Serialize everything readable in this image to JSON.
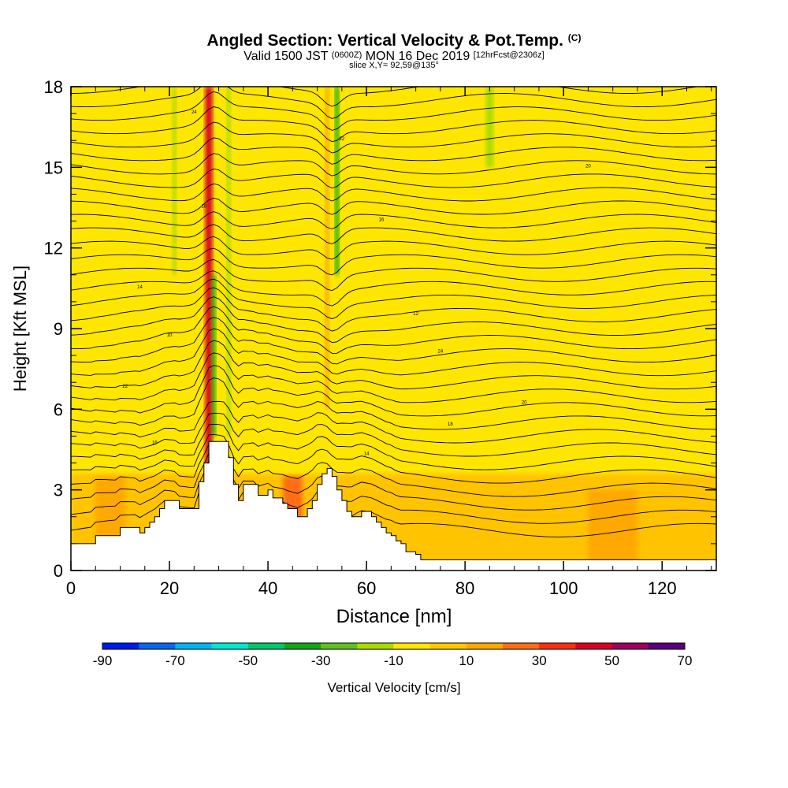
{
  "header": {
    "title": "Angled Section: Vertical Velocity & Pot.Temp.",
    "title_mark": "(C)",
    "subtitle_a": "Valid 1500 JST",
    "subtitle_b": "(0600Z)",
    "subtitle_c": "MON 16 Dec 2019",
    "subtitle_d": "[12hrFcst@2306z]",
    "slice": "slice X,Y= 92,59@135°"
  },
  "chart_data": {
    "type": "heatmap",
    "xlabel": "Distance [nm]",
    "ylabel": "Height [Kft MSL]",
    "xlim": [
      0,
      131
    ],
    "ylim": [
      0,
      18
    ],
    "xticks": [
      0,
      20,
      40,
      60,
      80,
      100,
      120
    ],
    "yticks": [
      0,
      3,
      6,
      9,
      12,
      15,
      18
    ],
    "colorbar": {
      "label": "Vertical Velocity [cm/s]",
      "tick_labels": [
        "-90",
        "-70",
        "-50",
        "-30",
        "-10",
        "10",
        "30",
        "50",
        "70"
      ],
      "range": [
        -90,
        70
      ],
      "step": 10,
      "colors": [
        "#0018f0",
        "#0a66f0",
        "#00b4f2",
        "#00e8d0",
        "#00c86a",
        "#10a818",
        "#60c020",
        "#a8dc00",
        "#ffe600",
        "#ffc800",
        "#ffa800",
        "#ff6e12",
        "#ff2e10",
        "#dc0022",
        "#a0005a",
        "#5a007c"
      ]
    },
    "background_value": -5,
    "dominant_range": [
      -10,
      10
    ],
    "features": [
      {
        "x": 28,
        "y_from": 0,
        "y_to": 18,
        "width": 1.5,
        "value": 40
      },
      {
        "x": 29,
        "y_from": 5,
        "y_to": 11,
        "width": 0.8,
        "value": -35
      },
      {
        "x": 21,
        "y_from": 11,
        "y_to": 18,
        "width": 0.8,
        "value": -15
      },
      {
        "x": 32,
        "y_from": 5,
        "y_to": 18,
        "width": 0.8,
        "value": -15
      },
      {
        "x": 54,
        "y_from": 11,
        "y_to": 18,
        "width": 0.8,
        "value": -35
      },
      {
        "x": 52,
        "y_from": 6,
        "y_to": 18,
        "width": 0.8,
        "value": 15
      },
      {
        "x": 85,
        "y_from": 15,
        "y_to": 18,
        "width": 1.5,
        "value": -15
      },
      {
        "x": 8,
        "y_from": 0,
        "y_to": 3.5,
        "width": 6,
        "value": 10
      },
      {
        "x": 45,
        "y_from": 1.5,
        "y_to": 3.5,
        "width": 4,
        "value": 20
      },
      {
        "x": 110,
        "y_from": 0,
        "y_to": 3,
        "width": 10,
        "value": 10
      }
    ],
    "terrain": [
      [
        0,
        1.0
      ],
      [
        4,
        1.0
      ],
      [
        5,
        1.3
      ],
      [
        9,
        1.3
      ],
      [
        10,
        1.6
      ],
      [
        13,
        1.6
      ],
      [
        14,
        1.4
      ],
      [
        15,
        1.6
      ],
      [
        16,
        1.8
      ],
      [
        17,
        2.0
      ],
      [
        18,
        2.3
      ],
      [
        19,
        2.6
      ],
      [
        21,
        2.6
      ],
      [
        22,
        2.3
      ],
      [
        25,
        2.3
      ],
      [
        26,
        3.3
      ],
      [
        27,
        4.0
      ],
      [
        28,
        4.8
      ],
      [
        31,
        4.8
      ],
      [
        32,
        4.2
      ],
      [
        33,
        3.2
      ],
      [
        34,
        2.6
      ],
      [
        35,
        3.2
      ],
      [
        37,
        3.2
      ],
      [
        38,
        2.8
      ],
      [
        40,
        3.0
      ],
      [
        41,
        2.7
      ],
      [
        43,
        2.5
      ],
      [
        44,
        2.3
      ],
      [
        46,
        2.0
      ],
      [
        48,
        2.3
      ],
      [
        49,
        2.6
      ],
      [
        50,
        3.2
      ],
      [
        51,
        3.6
      ],
      [
        52,
        3.8
      ],
      [
        53,
        3.5
      ],
      [
        54,
        3.0
      ],
      [
        55,
        2.6
      ],
      [
        56,
        2.2
      ],
      [
        57,
        2.0
      ],
      [
        59,
        2.2
      ],
      [
        61,
        2.0
      ],
      [
        62,
        1.8
      ],
      [
        63,
        1.6
      ],
      [
        64,
        1.4
      ],
      [
        65,
        1.3
      ],
      [
        66,
        1.1
      ],
      [
        67,
        1.0
      ],
      [
        68,
        0.7
      ],
      [
        70,
        0.6
      ],
      [
        71,
        0.4
      ],
      [
        131,
        0.4
      ]
    ],
    "contour_labels": [
      "24",
      "22",
      "20",
      "18",
      "16",
      "14",
      "12",
      "10"
    ]
  }
}
